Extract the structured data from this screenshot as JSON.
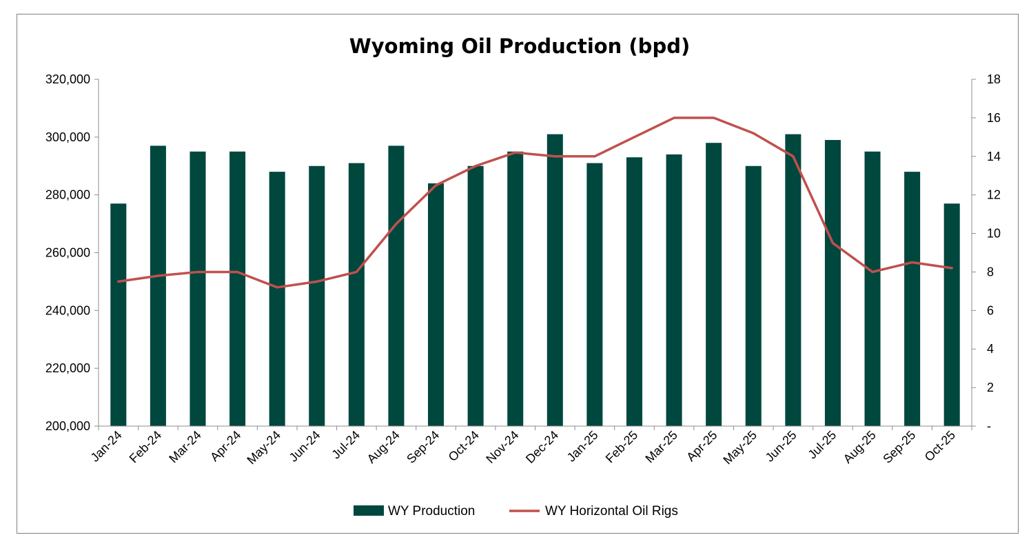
{
  "chart_data": {
    "type": "bar",
    "title": "Wyoming Oil Production (bpd)",
    "categories": [
      "Jan-24",
      "Feb-24",
      "Mar-24",
      "Apr-24",
      "May-24",
      "Jun-24",
      "Jul-24",
      "Aug-24",
      "Sep-24",
      "Oct-24",
      "Nov-24",
      "Dec-24",
      "Jan-25",
      "Feb-25",
      "Mar-25",
      "Apr-25",
      "May-25",
      "Jun-25",
      "Jul-25",
      "Aug-25",
      "Sep-25",
      "Oct-25"
    ],
    "series": [
      {
        "name": "WY Production",
        "type": "bar",
        "axis": "left",
        "color": "#00473e",
        "values": [
          277000,
          297000,
          295000,
          295000,
          288000,
          290000,
          291000,
          297000,
          284000,
          290000,
          295000,
          301000,
          291000,
          293000,
          294000,
          298000,
          290000,
          301000,
          299000,
          295000,
          288000,
          277000
        ]
      },
      {
        "name": "WY Horizontal Oil Rigs",
        "type": "line",
        "axis": "right",
        "color": "#c0504d",
        "values": [
          7.5,
          7.8,
          8,
          8,
          7.2,
          7.5,
          8,
          10.5,
          12.5,
          13.5,
          14.2,
          14,
          14,
          15,
          16,
          16,
          15.2,
          14,
          9.5,
          8,
          8.5,
          8.2
        ]
      }
    ],
    "y_left": {
      "min": 200000,
      "max": 320000,
      "ticks": [
        "200,000",
        "220,000",
        "240,000",
        "260,000",
        "280,000",
        "300,000",
        "320,000"
      ]
    },
    "y_right": {
      "min": 0,
      "max": 18,
      "ticks": [
        "-",
        "2",
        "4",
        "6",
        "8",
        "10",
        "12",
        "14",
        "16",
        "18"
      ]
    },
    "grid": false,
    "legend_position": "bottom"
  }
}
